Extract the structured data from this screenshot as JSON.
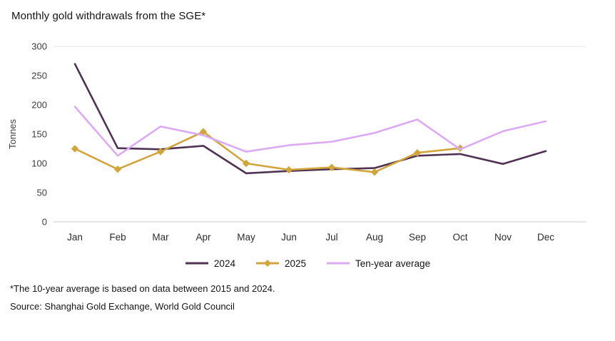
{
  "chart_data": {
    "type": "line",
    "title": "Monthly gold withdrawals from the SGE*",
    "xlabel": "",
    "ylabel": "Tonnes",
    "ylim": [
      0,
      300
    ],
    "yticks": [
      0,
      50,
      100,
      150,
      200,
      250,
      300
    ],
    "grid": "top-and-baseline-only",
    "legend_position": "bottom",
    "categories": [
      "Jan",
      "Feb",
      "Mar",
      "Apr",
      "May",
      "Jun",
      "Jul",
      "Aug",
      "Sep",
      "Oct",
      "Nov",
      "Dec"
    ],
    "series": [
      {
        "name": "2024",
        "color": "#503254",
        "marker": "none",
        "values": [
          270,
          126,
          124,
          130,
          83,
          87,
          90,
          92,
          113,
          116,
          99,
          121
        ]
      },
      {
        "name": "2025",
        "color": "#d1a53b",
        "marker": "diamond",
        "values": [
          125,
          90,
          120,
          154,
          100,
          89,
          93,
          85,
          118,
          126,
          null,
          null
        ]
      },
      {
        "name": "Ten-year average",
        "color": "#dcaaf2",
        "marker": "none",
        "values": [
          197,
          113,
          163,
          148,
          120,
          131,
          137,
          152,
          175,
          124,
          155,
          172
        ]
      }
    ]
  },
  "footnotes": {
    "note": "*The 10-year average is based on data between 2015 and 2024.",
    "source": "Source: Shanghai Gold Exchange, World Gold Council"
  }
}
